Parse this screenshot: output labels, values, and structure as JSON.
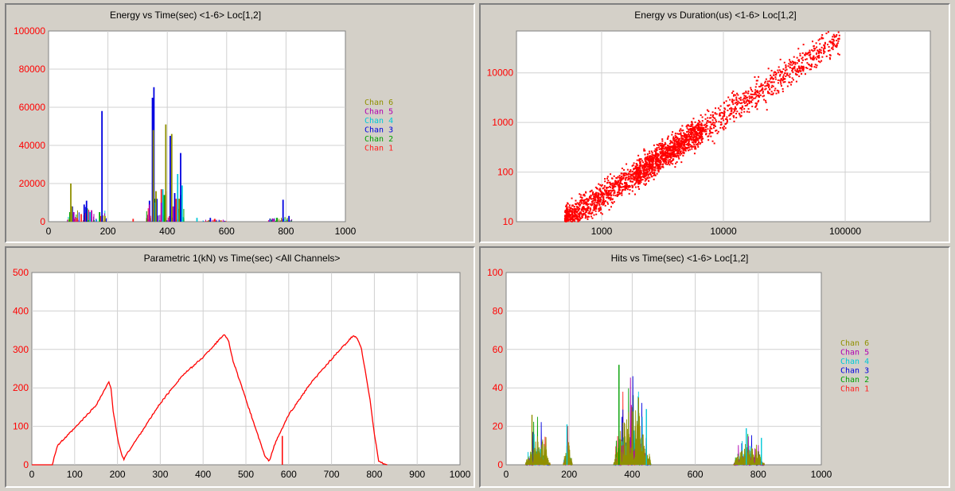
{
  "colors": {
    "chan1": "#ff2020",
    "chan2": "#00a000",
    "chan3": "#0000e0",
    "chan4": "#00c8d8",
    "chan5": "#b000b0",
    "chan6": "#909000",
    "axis_tick_y": "#ff0000",
    "plot_bg": "#ffffff",
    "grid": "#d0d0d0"
  },
  "chart_data": [
    {
      "id": "energy-time",
      "type": "bar",
      "title": "Energy vs Time(sec) <1-6> Loc[1,2]",
      "xlim": [
        0,
        1000
      ],
      "ylim": [
        0,
        100000
      ],
      "xticks": [
        "0",
        "200",
        "400",
        "600",
        "800",
        "1000"
      ],
      "yticks": [
        "0",
        "20000",
        "40000",
        "60000",
        "80000",
        "100000"
      ],
      "legend": [
        "Chan 6",
        "Chan 5",
        "Chan 4",
        "Chan 3",
        "Chan 2",
        "Chan 1"
      ],
      "series": [
        {
          "name": "Chan 1",
          "points": [
            [
              95,
              2000
            ],
            [
              110,
              4000
            ],
            [
              175,
              3000
            ],
            [
              285,
              1500
            ],
            [
              340,
              6000
            ],
            [
              380,
              17000
            ],
            [
              395,
              16000
            ],
            [
              430,
              12000
            ],
            [
              560,
              1500
            ],
            [
              790,
              1500
            ]
          ]
        },
        {
          "name": "Chan 2",
          "points": [
            [
              72,
              5000
            ],
            [
              130,
              7000
            ],
            [
              172,
              5000
            ],
            [
              358,
              12000
            ],
            [
              390,
              14000
            ],
            [
              415,
              8000
            ],
            [
              445,
              14000
            ],
            [
              770,
              2000
            ]
          ]
        },
        {
          "name": "Chan 3",
          "points": [
            [
              80,
              8000
            ],
            [
              120,
              9000
            ],
            [
              128,
              11000
            ],
            [
              180,
              58000
            ],
            [
              340,
              11000
            ],
            [
              350,
              65000
            ],
            [
              355,
              70500
            ],
            [
              365,
              12000
            ],
            [
              410,
              45000
            ],
            [
              425,
              15000
            ],
            [
              445,
              36000
            ],
            [
              545,
              2000
            ],
            [
              790,
              11500
            ],
            [
              810,
              3000
            ]
          ]
        },
        {
          "name": "Chan 4",
          "points": [
            [
              140,
              5000
            ],
            [
              360,
              10000
            ],
            [
              385,
              17000
            ],
            [
              435,
              25000
            ],
            [
              450,
              19000
            ],
            [
              500,
              2000
            ]
          ]
        },
        {
          "name": "Chan 5",
          "points": [
            [
              85,
              5000
            ],
            [
              145,
              6000
            ],
            [
              340,
              9000
            ],
            [
              380,
              10000
            ],
            [
              420,
              8000
            ],
            [
              760,
              1500
            ]
          ]
        },
        {
          "name": "Chan 6",
          "points": [
            [
              75,
              20000
            ],
            [
              78,
              8000
            ],
            [
              190,
              3000
            ],
            [
              353,
              48000
            ],
            [
              362,
              16000
            ],
            [
              395,
              51000
            ],
            [
              415,
              46000
            ],
            [
              440,
              12000
            ]
          ]
        }
      ]
    },
    {
      "id": "energy-duration",
      "type": "scatter",
      "title": "Energy vs Duration(us) <1-6> Loc[1,2]",
      "xscale": "log",
      "yscale": "log",
      "xlim": [
        200,
        500000
      ],
      "ylim": [
        10,
        70000
      ],
      "xticks": [
        "1000",
        "10000",
        "100000"
      ],
      "yticks": [
        "10",
        "100",
        "1000",
        "10000"
      ],
      "trend": {
        "x_start": 500,
        "x_end": 90000,
        "y_at_start": 10,
        "y_at_end": 50000
      },
      "points_count": 2600,
      "color": "#ff0000"
    },
    {
      "id": "parametric-time",
      "type": "line",
      "title": "Parametric 1(kN) vs Time(sec) <All Channels>",
      "xlim": [
        0,
        1000
      ],
      "ylim": [
        0,
        500
      ],
      "xticks": [
        "0",
        "100",
        "200",
        "300",
        "400",
        "500",
        "600",
        "700",
        "800",
        "900",
        "1000"
      ],
      "yticks": [
        "0",
        "100",
        "200",
        "300",
        "400",
        "500"
      ],
      "x": [
        0,
        48,
        52,
        60,
        100,
        150,
        180,
        185,
        190,
        200,
        210,
        215,
        220,
        250,
        300,
        350,
        400,
        450,
        460,
        470,
        500,
        530,
        545,
        555,
        560,
        570,
        600,
        650,
        700,
        750,
        760,
        770,
        790,
        800,
        810,
        820,
        830
      ],
      "y": [
        0,
        0,
        20,
        50,
        95,
        155,
        215,
        200,
        140,
        70,
        25,
        15,
        25,
        75,
        160,
        230,
        280,
        340,
        320,
        270,
        170,
        70,
        20,
        10,
        30,
        60,
        130,
        210,
        275,
        335,
        330,
        300,
        170,
        80,
        10,
        3,
        0
      ],
      "spike": {
        "x": 585,
        "y": 75
      },
      "color": "#ff0000"
    },
    {
      "id": "hits-time",
      "type": "bar",
      "title": "Hits vs Time(sec) <1-6> Loc[1,2]",
      "xlim": [
        0,
        1000
      ],
      "ylim": [
        0,
        100
      ],
      "xticks": [
        "0",
        "200",
        "400",
        "600",
        "800",
        "1000"
      ],
      "yticks": [
        "0",
        "20",
        "40",
        "60",
        "80",
        "100"
      ],
      "legend": [
        "Chan 6",
        "Chan 5",
        "Chan 4",
        "Chan 3",
        "Chan 2",
        "Chan 1"
      ],
      "clusters": [
        [
          60,
          140,
          26
        ],
        [
          180,
          210,
          21
        ],
        [
          340,
          460,
          52
        ],
        [
          720,
          820,
          19
        ]
      ]
    }
  ]
}
